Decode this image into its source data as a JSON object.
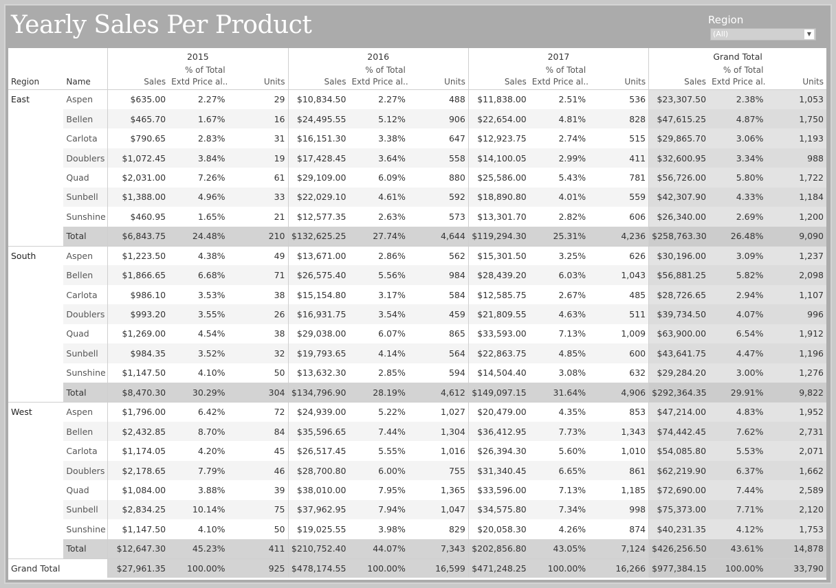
{
  "title": "Yearly Sales Per Product",
  "filter": {
    "label": "Region",
    "value": "(All)"
  },
  "header": {
    "region_col": "Region",
    "name_col": "Name",
    "years": [
      "2015",
      "2016",
      "2017",
      "Grand Total"
    ],
    "sales_col": "Sales",
    "pct_col_line1": "% of Total",
    "pct_col_line2": "Extd Price al..",
    "units_col": "Units"
  },
  "regions": [
    {
      "region": "East",
      "rows": [
        {
          "name": "Aspen",
          "cells": [
            [
              "$635.00",
              "2.27%",
              "29"
            ],
            [
              "$10,834.50",
              "2.27%",
              "488"
            ],
            [
              "$11,838.00",
              "2.51%",
              "536"
            ],
            [
              "$23,307.50",
              "2.38%",
              "1,053"
            ]
          ]
        },
        {
          "name": "Bellen",
          "cells": [
            [
              "$465.70",
              "1.67%",
              "16"
            ],
            [
              "$24,495.55",
              "5.12%",
              "906"
            ],
            [
              "$22,654.00",
              "4.81%",
              "828"
            ],
            [
              "$47,615.25",
              "4.87%",
              "1,750"
            ]
          ]
        },
        {
          "name": "Carlota",
          "cells": [
            [
              "$790.65",
              "2.83%",
              "31"
            ],
            [
              "$16,151.30",
              "3.38%",
              "647"
            ],
            [
              "$12,923.75",
              "2.74%",
              "515"
            ],
            [
              "$29,865.70",
              "3.06%",
              "1,193"
            ]
          ]
        },
        {
          "name": "Doublers",
          "cells": [
            [
              "$1,072.45",
              "3.84%",
              "19"
            ],
            [
              "$17,428.45",
              "3.64%",
              "558"
            ],
            [
              "$14,100.05",
              "2.99%",
              "411"
            ],
            [
              "$32,600.95",
              "3.34%",
              "988"
            ]
          ]
        },
        {
          "name": "Quad",
          "cells": [
            [
              "$2,031.00",
              "7.26%",
              "61"
            ],
            [
              "$29,109.00",
              "6.09%",
              "880"
            ],
            [
              "$25,586.00",
              "5.43%",
              "781"
            ],
            [
              "$56,726.00",
              "5.80%",
              "1,722"
            ]
          ]
        },
        {
          "name": "Sunbell",
          "cells": [
            [
              "$1,388.00",
              "4.96%",
              "33"
            ],
            [
              "$22,029.10",
              "4.61%",
              "592"
            ],
            [
              "$18,890.80",
              "4.01%",
              "559"
            ],
            [
              "$42,307.90",
              "4.33%",
              "1,184"
            ]
          ]
        },
        {
          "name": "Sunshine",
          "cells": [
            [
              "$460.95",
              "1.65%",
              "21"
            ],
            [
              "$12,577.35",
              "2.63%",
              "573"
            ],
            [
              "$13,301.70",
              "2.82%",
              "606"
            ],
            [
              "$26,340.00",
              "2.69%",
              "1,200"
            ]
          ]
        },
        {
          "name": "Total",
          "cells": [
            [
              "$6,843.75",
              "24.48%",
              "210"
            ],
            [
              "$132,625.25",
              "27.74%",
              "4,644"
            ],
            [
              "$119,294.30",
              "25.31%",
              "4,236"
            ],
            [
              "$258,763.30",
              "26.48%",
              "9,090"
            ]
          ]
        }
      ]
    },
    {
      "region": "South",
      "rows": [
        {
          "name": "Aspen",
          "cells": [
            [
              "$1,223.50",
              "4.38%",
              "49"
            ],
            [
              "$13,671.00",
              "2.86%",
              "562"
            ],
            [
              "$15,301.50",
              "3.25%",
              "626"
            ],
            [
              "$30,196.00",
              "3.09%",
              "1,237"
            ]
          ]
        },
        {
          "name": "Bellen",
          "cells": [
            [
              "$1,866.65",
              "6.68%",
              "71"
            ],
            [
              "$26,575.40",
              "5.56%",
              "984"
            ],
            [
              "$28,439.20",
              "6.03%",
              "1,043"
            ],
            [
              "$56,881.25",
              "5.82%",
              "2,098"
            ]
          ]
        },
        {
          "name": "Carlota",
          "cells": [
            [
              "$986.10",
              "3.53%",
              "38"
            ],
            [
              "$15,154.80",
              "3.17%",
              "584"
            ],
            [
              "$12,585.75",
              "2.67%",
              "485"
            ],
            [
              "$28,726.65",
              "2.94%",
              "1,107"
            ]
          ]
        },
        {
          "name": "Doublers",
          "cells": [
            [
              "$993.20",
              "3.55%",
              "26"
            ],
            [
              "$16,931.75",
              "3.54%",
              "459"
            ],
            [
              "$21,809.55",
              "4.63%",
              "511"
            ],
            [
              "$39,734.50",
              "4.07%",
              "996"
            ]
          ]
        },
        {
          "name": "Quad",
          "cells": [
            [
              "$1,269.00",
              "4.54%",
              "38"
            ],
            [
              "$29,038.00",
              "6.07%",
              "865"
            ],
            [
              "$33,593.00",
              "7.13%",
              "1,009"
            ],
            [
              "$63,900.00",
              "6.54%",
              "1,912"
            ]
          ]
        },
        {
          "name": "Sunbell",
          "cells": [
            [
              "$984.35",
              "3.52%",
              "32"
            ],
            [
              "$19,793.65",
              "4.14%",
              "564"
            ],
            [
              "$22,863.75",
              "4.85%",
              "600"
            ],
            [
              "$43,641.75",
              "4.47%",
              "1,196"
            ]
          ]
        },
        {
          "name": "Sunshine",
          "cells": [
            [
              "$1,147.50",
              "4.10%",
              "50"
            ],
            [
              "$13,632.30",
              "2.85%",
              "594"
            ],
            [
              "$14,504.40",
              "3.08%",
              "632"
            ],
            [
              "$29,284.20",
              "3.00%",
              "1,276"
            ]
          ]
        },
        {
          "name": "Total",
          "cells": [
            [
              "$8,470.30",
              "30.29%",
              "304"
            ],
            [
              "$134,796.90",
              "28.19%",
              "4,612"
            ],
            [
              "$149,097.15",
              "31.64%",
              "4,906"
            ],
            [
              "$292,364.35",
              "29.91%",
              "9,822"
            ]
          ]
        }
      ]
    },
    {
      "region": "West",
      "rows": [
        {
          "name": "Aspen",
          "cells": [
            [
              "$1,796.00",
              "6.42%",
              "72"
            ],
            [
              "$24,939.00",
              "5.22%",
              "1,027"
            ],
            [
              "$20,479.00",
              "4.35%",
              "853"
            ],
            [
              "$47,214.00",
              "4.83%",
              "1,952"
            ]
          ]
        },
        {
          "name": "Bellen",
          "cells": [
            [
              "$2,432.85",
              "8.70%",
              "84"
            ],
            [
              "$35,596.65",
              "7.44%",
              "1,304"
            ],
            [
              "$36,412.95",
              "7.73%",
              "1,343"
            ],
            [
              "$74,442.45",
              "7.62%",
              "2,731"
            ]
          ]
        },
        {
          "name": "Carlota",
          "cells": [
            [
              "$1,174.05",
              "4.20%",
              "45"
            ],
            [
              "$26,517.45",
              "5.55%",
              "1,016"
            ],
            [
              "$26,394.30",
              "5.60%",
              "1,010"
            ],
            [
              "$54,085.80",
              "5.53%",
              "2,071"
            ]
          ]
        },
        {
          "name": "Doublers",
          "cells": [
            [
              "$2,178.65",
              "7.79%",
              "46"
            ],
            [
              "$28,700.80",
              "6.00%",
              "755"
            ],
            [
              "$31,340.45",
              "6.65%",
              "861"
            ],
            [
              "$62,219.90",
              "6.37%",
              "1,662"
            ]
          ]
        },
        {
          "name": "Quad",
          "cells": [
            [
              "$1,084.00",
              "3.88%",
              "39"
            ],
            [
              "$38,010.00",
              "7.95%",
              "1,365"
            ],
            [
              "$33,596.00",
              "7.13%",
              "1,185"
            ],
            [
              "$72,690.00",
              "7.44%",
              "2,589"
            ]
          ]
        },
        {
          "name": "Sunbell",
          "cells": [
            [
              "$2,834.25",
              "10.14%",
              "75"
            ],
            [
              "$37,962.95",
              "7.94%",
              "1,047"
            ],
            [
              "$34,575.80",
              "7.34%",
              "998"
            ],
            [
              "$75,373.00",
              "7.71%",
              "2,120"
            ]
          ]
        },
        {
          "name": "Sunshine",
          "cells": [
            [
              "$1,147.50",
              "4.10%",
              "50"
            ],
            [
              "$19,025.55",
              "3.98%",
              "829"
            ],
            [
              "$20,058.30",
              "4.26%",
              "874"
            ],
            [
              "$40,231.35",
              "4.12%",
              "1,753"
            ]
          ]
        },
        {
          "name": "Total",
          "cells": [
            [
              "$12,647.30",
              "45.23%",
              "411"
            ],
            [
              "$210,752.40",
              "44.07%",
              "7,343"
            ],
            [
              "$202,856.80",
              "43.05%",
              "7,124"
            ],
            [
              "$426,256.50",
              "43.61%",
              "14,878"
            ]
          ]
        }
      ]
    }
  ],
  "grand_total": {
    "label": "Grand Total",
    "cells": [
      [
        "$27,961.35",
        "100.00%",
        "925"
      ],
      [
        "$478,174.55",
        "100.00%",
        "16,599"
      ],
      [
        "$471,248.25",
        "100.00%",
        "16,266"
      ],
      [
        "$977,384.15",
        "100.00%",
        "33,790"
      ]
    ]
  }
}
